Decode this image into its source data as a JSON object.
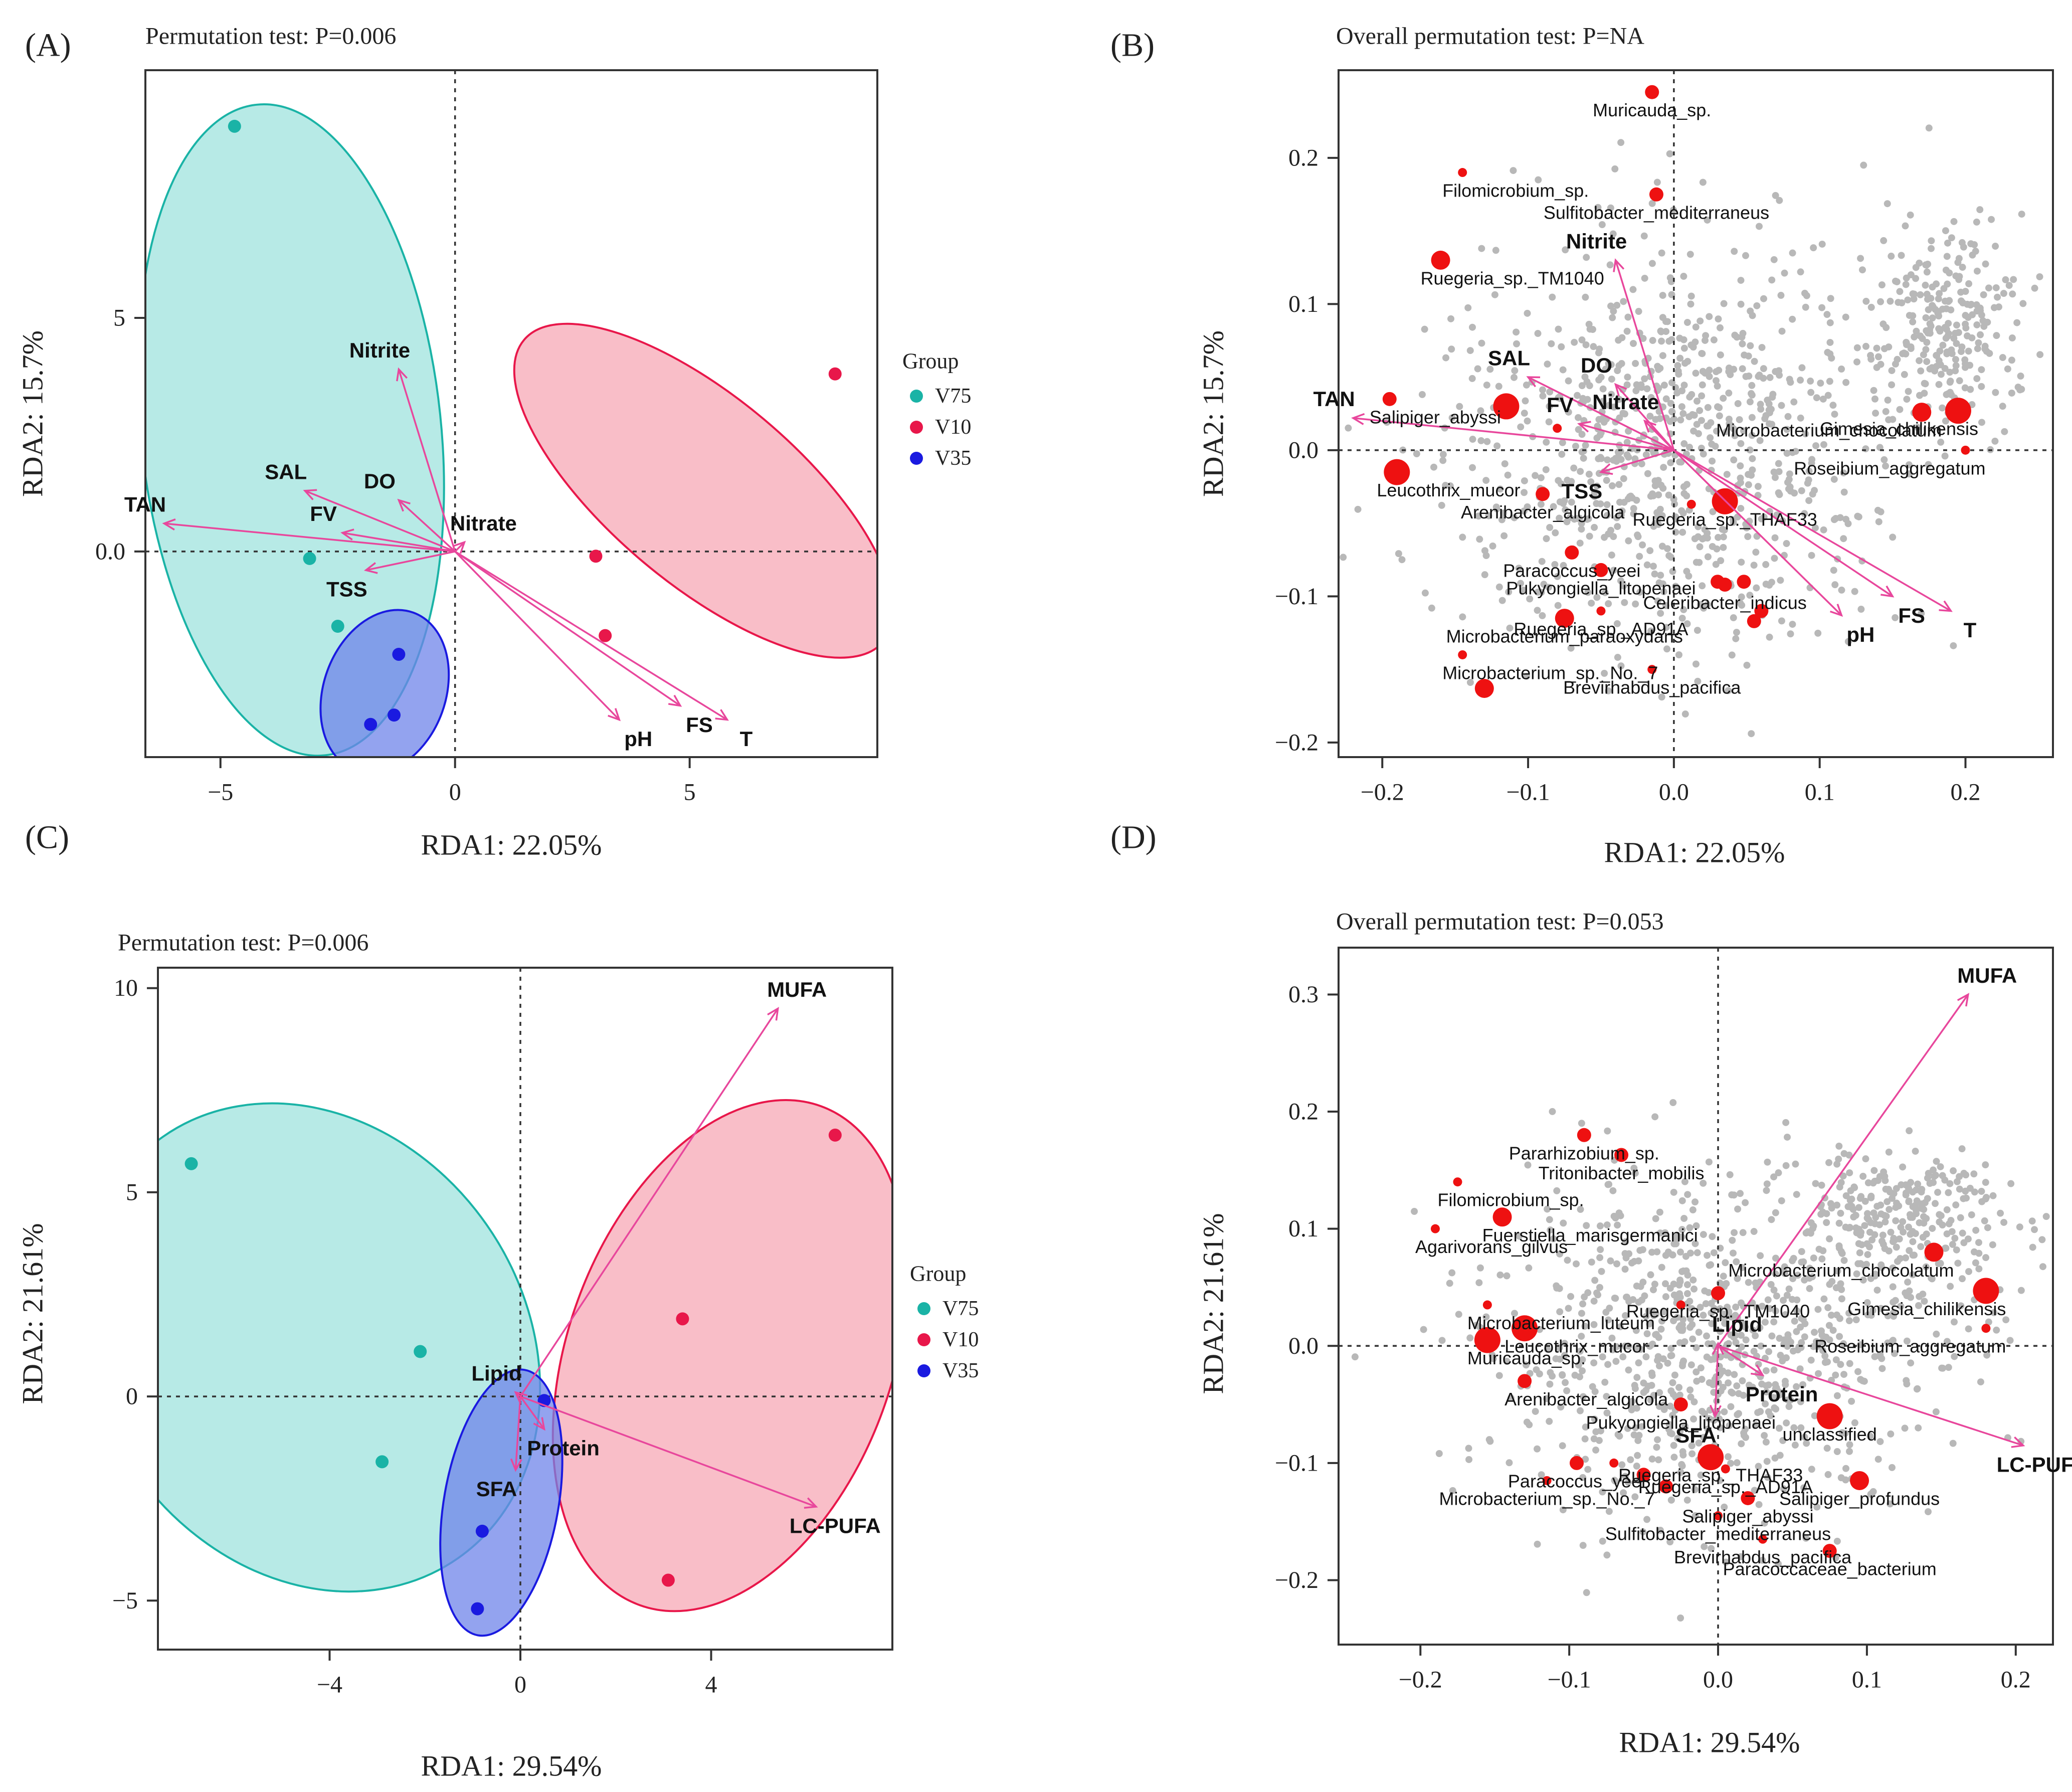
{
  "colors": {
    "V75": "#1ab3a6",
    "V10": "#e8174a",
    "V35": "#1a1ae0",
    "V75_fill": "#9fe3dd",
    "V10_fill": "#f7a8b5",
    "V35_fill": "#6f84ea",
    "arrow": "#e8479c",
    "species": "#ee1111",
    "cloud": "#b8b8b8"
  },
  "chart_data": [
    {
      "panel": "(A)",
      "type": "scatter",
      "title": "Permutation test: P=0.006",
      "xlabel": "RDA1: 22.05%",
      "ylabel": "RDA2: 15.7%",
      "xlim": [
        -6.6,
        9.0
      ],
      "ylim": [
        -4.4,
        10.3
      ],
      "xticks": [
        -5,
        0,
        5
      ],
      "yticks": [
        0.0,
        5
      ],
      "ytick_labels": [
        "0.0",
        "5"
      ],
      "legend": {
        "title": "Group",
        "placement": "right",
        "entries": [
          "V75",
          "V10",
          "V35"
        ]
      },
      "points": [
        {
          "group": "V75",
          "x": -4.7,
          "y": 9.1
        },
        {
          "group": "V75",
          "x": -3.1,
          "y": -0.15
        },
        {
          "group": "V75",
          "x": -2.5,
          "y": -1.6
        },
        {
          "group": "V10",
          "x": 8.1,
          "y": 3.8
        },
        {
          "group": "V10",
          "x": 3.0,
          "y": -0.1
        },
        {
          "group": "V10",
          "x": 3.2,
          "y": -1.8
        },
        {
          "group": "V35",
          "x": -1.2,
          "y": -2.2
        },
        {
          "group": "V35",
          "x": -1.3,
          "y": -3.5
        },
        {
          "group": "V35",
          "x": -1.8,
          "y": -3.7
        }
      ],
      "ellipses": [
        {
          "group": "V75",
          "cx": -3.5,
          "cy": 2.6,
          "rx": 3.2,
          "ry": 7.0,
          "angle": -6
        },
        {
          "group": "V10",
          "cx": 5.3,
          "cy": 1.3,
          "rx": 5.0,
          "ry": 2.0,
          "angle": 40
        },
        {
          "group": "V35",
          "cx": -1.5,
          "cy": -3.0,
          "rx": 1.3,
          "ry": 1.8,
          "angle": 20
        }
      ],
      "vectors": [
        {
          "label": "Nitrite",
          "x": -1.2,
          "y": 3.9
        },
        {
          "label": "SAL",
          "x": -3.2,
          "y": 1.3
        },
        {
          "label": "DO",
          "x": -1.2,
          "y": 1.1
        },
        {
          "label": "TAN",
          "x": -6.2,
          "y": 0.6
        },
        {
          "label": "FV",
          "x": -2.4,
          "y": 0.4
        },
        {
          "label": "TSS",
          "x": -1.9,
          "y": -0.4
        },
        {
          "label": "Nitrate",
          "x": 0.2,
          "y": 0.2
        },
        {
          "label": "pH",
          "x": 3.5,
          "y": -3.6
        },
        {
          "label": "FS",
          "x": 4.8,
          "y": -3.3
        },
        {
          "label": "T",
          "x": 5.8,
          "y": -3.6
        }
      ]
    },
    {
      "panel": "(B)",
      "type": "scatter",
      "title": "Overall permutation test: P=NA",
      "xlabel": "RDA1: 22.05%",
      "ylabel": "RDA2: 15.7%",
      "xlim": [
        -0.23,
        0.26
      ],
      "ylim": [
        -0.21,
        0.26
      ],
      "xticks": [
        -0.2,
        -0.1,
        0.0,
        0.1,
        0.2
      ],
      "yticks": [
        -0.2,
        -0.1,
        0.0,
        0.1,
        0.2
      ],
      "vectors": [
        {
          "label": "Nitrite",
          "x": -0.04,
          "y": 0.13
        },
        {
          "label": "SAL",
          "x": -0.1,
          "y": 0.05
        },
        {
          "label": "DO",
          "x": -0.04,
          "y": 0.045
        },
        {
          "label": "TAN",
          "x": -0.22,
          "y": 0.022
        },
        {
          "label": "FV",
          "x": -0.065,
          "y": 0.018
        },
        {
          "label": "TSS",
          "x": -0.05,
          "y": -0.015
        },
        {
          "label": "Nitrate",
          "x": -0.02,
          "y": 0.02
        },
        {
          "label": "pH",
          "x": 0.115,
          "y": -0.113
        },
        {
          "label": "FS",
          "x": 0.15,
          "y": -0.1
        },
        {
          "label": "T",
          "x": 0.19,
          "y": -0.11
        }
      ],
      "species": [
        {
          "label": "Muricauda_sp.",
          "x": -0.015,
          "y": 0.245,
          "size": 2
        },
        {
          "label": "Filomicrobium_sp.",
          "x": -0.145,
          "y": 0.19,
          "size": 1
        },
        {
          "label": "Sulfitobacter_mediterraneus",
          "x": -0.012,
          "y": 0.175,
          "size": 2
        },
        {
          "label": "Ruegeria_sp._TM1040",
          "x": -0.16,
          "y": 0.13,
          "size": 3
        },
        {
          "label": "Salipiger_abyssi",
          "x": -0.195,
          "y": 0.035,
          "size": 2
        },
        {
          "label": "Microbacterium_chocolatum",
          "x": 0.17,
          "y": 0.026,
          "size": 3
        },
        {
          "label": "Gimesia_chilikensis",
          "x": 0.195,
          "y": 0.027,
          "size": 4
        },
        {
          "label": "Roseibium_aggregatum",
          "x": 0.2,
          "y": 0.0,
          "size": 1
        },
        {
          "label": "Leucothrix_mucor",
          "x": -0.19,
          "y": -0.015,
          "size": 4
        },
        {
          "label": "Arenibacter_algicola",
          "x": -0.09,
          "y": -0.03,
          "size": 2
        },
        {
          "label": "Paracoccus_yeei",
          "x": -0.07,
          "y": -0.07,
          "size": 2
        },
        {
          "label": "Pukyongiella_litopenaei",
          "x": -0.05,
          "y": -0.082,
          "size": 2
        },
        {
          "label": "Ruegeria_sp._AD91A",
          "x": -0.05,
          "y": -0.11,
          "size": 1
        },
        {
          "label": "Ruegeria_sp._THAF33",
          "x": 0.035,
          "y": -0.035,
          "size": 4
        },
        {
          "label": "Celeribacter_indicus",
          "x": 0.035,
          "y": -0.092,
          "size": 2
        },
        {
          "label": "Microbacterium_paraoxydans",
          "x": -0.075,
          "y": -0.115,
          "size": 3
        },
        {
          "label": "Microbacterium_sp._No._7",
          "x": -0.145,
          "y": -0.14,
          "size": 1
        },
        {
          "label": "Brevirhabdus_pacifica",
          "x": -0.015,
          "y": -0.15,
          "size": 1
        },
        {
          "label": "",
          "x": -0.13,
          "y": -0.163,
          "size": 3
        },
        {
          "label": "",
          "x": -0.115,
          "y": 0.03,
          "size": 4
        },
        {
          "label": "",
          "x": -0.08,
          "y": 0.015,
          "size": 1
        },
        {
          "label": "",
          "x": 0.012,
          "y": -0.037,
          "size": 1
        },
        {
          "label": "",
          "x": 0.048,
          "y": -0.09,
          "size": 2
        },
        {
          "label": "",
          "x": 0.055,
          "y": -0.117,
          "size": 2
        },
        {
          "label": "",
          "x": 0.06,
          "y": -0.11,
          "size": 2
        },
        {
          "label": "",
          "x": 0.03,
          "y": -0.09,
          "size": 2
        }
      ]
    },
    {
      "panel": "(C)",
      "type": "scatter",
      "title": "Permutation test: P=0.006",
      "xlabel": "RDA1: 29.54%",
      "ylabel": "RDA2: 21.61%",
      "xlim": [
        -7.6,
        7.8
      ],
      "ylim": [
        -6.2,
        10.5
      ],
      "xticks": [
        -4,
        0,
        4
      ],
      "yticks": [
        -5,
        0,
        5,
        10
      ],
      "legend": {
        "title": "Group",
        "placement": "right",
        "entries": [
          "V75",
          "V10",
          "V35"
        ]
      },
      "points": [
        {
          "group": "V75",
          "x": -6.9,
          "y": 5.7
        },
        {
          "group": "V75",
          "x": -2.1,
          "y": 1.1
        },
        {
          "group": "V75",
          "x": -2.9,
          "y": -1.6
        },
        {
          "group": "V10",
          "x": 6.6,
          "y": 6.4
        },
        {
          "group": "V10",
          "x": 3.4,
          "y": 1.9
        },
        {
          "group": "V10",
          "x": 3.1,
          "y": -4.5
        },
        {
          "group": "V35",
          "x": 0.5,
          "y": -0.1
        },
        {
          "group": "V35",
          "x": -0.8,
          "y": -3.3
        },
        {
          "group": "V35",
          "x": -0.9,
          "y": -5.2
        }
      ],
      "ellipses": [
        {
          "group": "V75",
          "cx": -4.4,
          "cy": 1.2,
          "rx": 4.5,
          "ry": 6.3,
          "angle": -35
        },
        {
          "group": "V10",
          "cx": 4.4,
          "cy": 1.0,
          "rx": 3.4,
          "ry": 6.5,
          "angle": 20
        },
        {
          "group": "V35",
          "cx": -0.4,
          "cy": -2.6,
          "rx": 1.2,
          "ry": 3.3,
          "angle": 10
        }
      ],
      "vectors": [
        {
          "label": "MUFA",
          "x": 5.4,
          "y": 9.5
        },
        {
          "label": "LC-PUFA",
          "x": 6.2,
          "y": -2.7
        },
        {
          "label": "Lipid",
          "x": -0.1,
          "y": 0.1
        },
        {
          "label": "Protein",
          "x": 0.5,
          "y": -0.8
        },
        {
          "label": "SFA",
          "x": -0.1,
          "y": -1.8
        }
      ]
    },
    {
      "panel": "(D)",
      "type": "scatter",
      "title": "Overall permutation test: P=0.053",
      "xlabel": "RDA1: 29.54%",
      "ylabel": "RDA2: 21.61%",
      "xlim": [
        -0.255,
        0.225
      ],
      "ylim": [
        -0.255,
        0.34
      ],
      "xticks": [
        -0.2,
        -0.1,
        0.0,
        0.1,
        0.2
      ],
      "yticks": [
        -0.2,
        -0.1,
        0.0,
        0.1,
        0.2,
        0.3
      ],
      "vectors": [
        {
          "label": "MUFA",
          "x": 0.168,
          "y": 0.3
        },
        {
          "label": "LC-PUFA",
          "x": 0.205,
          "y": -0.085
        },
        {
          "label": "Lipid",
          "x": 0.0,
          "y": 0.002
        },
        {
          "label": "Protein",
          "x": 0.03,
          "y": -0.025
        },
        {
          "label": "SFA",
          "x": -0.002,
          "y": -0.06
        }
      ],
      "species": [
        {
          "label": "Pararhizobium_sp.",
          "x": -0.09,
          "y": 0.18,
          "size": 2
        },
        {
          "label": "Tritonibacter_mobilis",
          "x": -0.065,
          "y": 0.163,
          "size": 2
        },
        {
          "label": "Filomicrobium_sp.",
          "x": -0.175,
          "y": 0.14,
          "size": 1
        },
        {
          "label": "Fuerstiella_marisgermanici",
          "x": -0.145,
          "y": 0.11,
          "size": 3
        },
        {
          "label": "Agarivorans_gilvus",
          "x": -0.19,
          "y": 0.1,
          "size": 1
        },
        {
          "label": "Microbacterium_chocolatum",
          "x": 0.145,
          "y": 0.08,
          "size": 3
        },
        {
          "label": "Ruegeria_sp._TM1040",
          "x": 0.0,
          "y": 0.045,
          "size": 2
        },
        {
          "label": "Gimesia_chilikensis",
          "x": 0.18,
          "y": 0.047,
          "size": 4
        },
        {
          "label": "Microbacterium_luteum",
          "x": -0.155,
          "y": 0.035,
          "size": 1
        },
        {
          "label": "Leucothrix_mucor",
          "x": -0.13,
          "y": 0.015,
          "size": 4
        },
        {
          "label": "Roseibium_aggregatum",
          "x": 0.18,
          "y": 0.015,
          "size": 1
        },
        {
          "label": "Muricauda_sp.",
          "x": -0.155,
          "y": 0.005,
          "size": 4
        },
        {
          "label": "Arenibacter_algicola",
          "x": -0.13,
          "y": -0.03,
          "size": 2
        },
        {
          "label": "unclassified",
          "x": 0.075,
          "y": -0.06,
          "size": 4
        },
        {
          "label": "Pukyongiella_litopenaei",
          "x": -0.025,
          "y": -0.05,
          "size": 2
        },
        {
          "label": "Ruegeria_sp._THAF33",
          "x": -0.005,
          "y": -0.095,
          "size": 4
        },
        {
          "label": "Paracoccus_yeei",
          "x": -0.095,
          "y": -0.1,
          "size": 2
        },
        {
          "label": "Ruegeria_sp._AD91A",
          "x": 0.005,
          "y": -0.105,
          "size": 1
        },
        {
          "label": "Salipiger_profundus",
          "x": 0.095,
          "y": -0.115,
          "size": 3
        },
        {
          "label": "Microbacterium_sp._No._7",
          "x": -0.115,
          "y": -0.115,
          "size": 1
        },
        {
          "label": "Salipiger_abyssi",
          "x": 0.02,
          "y": -0.13,
          "size": 2
        },
        {
          "label": "Sulfitobacter_mediterraneus",
          "x": 0.0,
          "y": -0.145,
          "size": 1
        },
        {
          "label": "Brevirhabdus_pacifica",
          "x": 0.03,
          "y": -0.165,
          "size": 1
        },
        {
          "label": "Paracoccaceae_bacterium",
          "x": 0.075,
          "y": -0.175,
          "size": 2
        },
        {
          "label": "",
          "x": -0.05,
          "y": -0.11,
          "size": 2
        },
        {
          "label": "",
          "x": -0.035,
          "y": -0.12,
          "size": 2
        },
        {
          "label": "",
          "x": -0.07,
          "y": -0.1,
          "size": 1
        },
        {
          "label": "",
          "x": -0.025,
          "y": 0.035,
          "size": 1
        }
      ]
    }
  ]
}
